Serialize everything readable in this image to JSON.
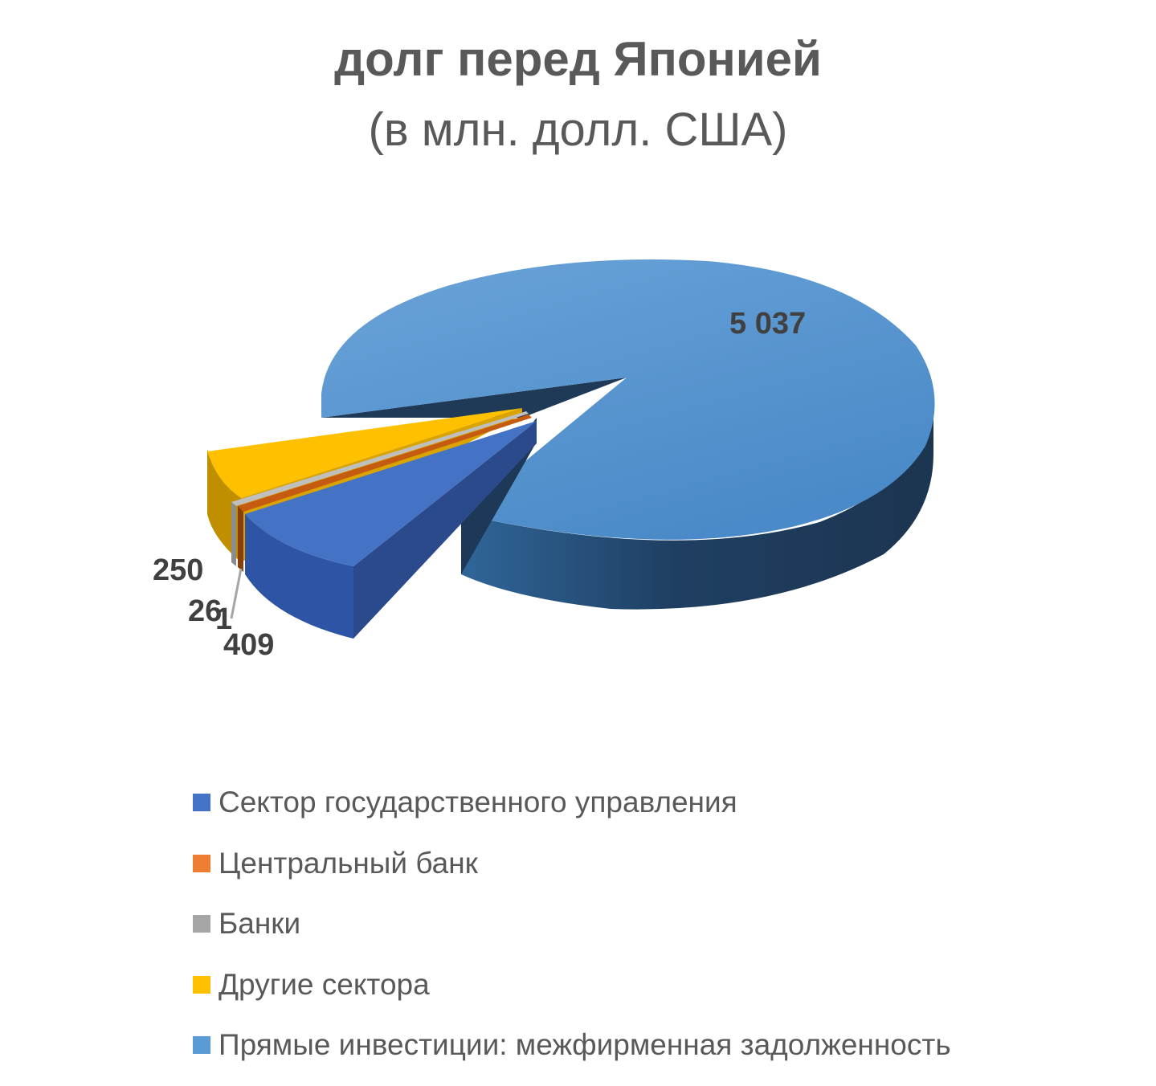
{
  "chart_data": {
    "type": "pie",
    "title": "долг перед Японией",
    "subtitle": "(в млн. долл. США)",
    "three_d": true,
    "legend_position": "bottom",
    "series": [
      {
        "name": "Сектор государственного управления",
        "value": 409,
        "label": "409",
        "color": "#4472C4"
      },
      {
        "name": "Центральный банк",
        "value": 26,
        "label": "26",
        "color": "#ED7D31"
      },
      {
        "name": "Банки",
        "value": 1,
        "label": "1",
        "color": "#A5A5A5"
      },
      {
        "name": "Другие сектора",
        "value": 250,
        "label": "250",
        "color": "#FFC000"
      },
      {
        "name": "Прямые инвестиции: межфирменная задолженность",
        "value": 5037,
        "label": "5 037",
        "color": "#5B9BD5"
      }
    ]
  }
}
